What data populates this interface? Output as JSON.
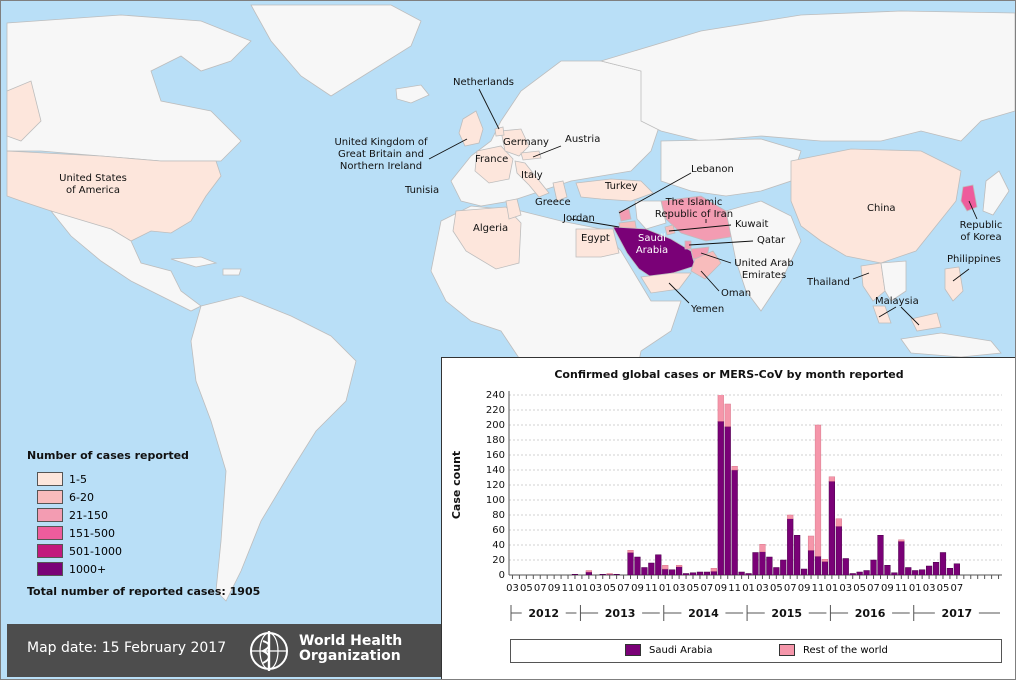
{
  "map": {
    "labels": {
      "netherlands": "Netherlands",
      "uk": "United Kingdom of Great Britain and Northern Ireland",
      "germany": "Germany",
      "austria": "Austria",
      "france": "France",
      "usa": "United States of America",
      "tunisia": "Tunisia",
      "italy": "Italy",
      "turkey": "Turkey",
      "lebanon": "Lebanon",
      "greece": "Greece",
      "iran": "The Islamic Republic of Iran",
      "jordan": "Jordan",
      "kuwait": "Kuwait",
      "algeria": "Algeria",
      "egypt": "Egypt",
      "saudi": "Saudi Arabia",
      "qatar": "Qatar",
      "uae": "United Arab Emirates",
      "oman": "Oman",
      "yemen": "Yemen",
      "china": "China",
      "korea": "Republic of Korea",
      "philippines": "Philippines",
      "thailand": "Thailand",
      "malaysia": "Malaysia"
    },
    "colors": {
      "ocean": "#b9dff7",
      "land": "#f7f7f7",
      "border": "#bdbdbd",
      "c1_5": "#fde6dc",
      "c6_20": "#f8bcbc",
      "c21_150": "#f39cb2",
      "c151_500": "#ee5c9c",
      "c501_1000": "#c2197d",
      "c1000": "#7a0177"
    }
  },
  "legend": {
    "title": "Number of cases reported",
    "items": [
      {
        "label": "1-5",
        "color": "#fde6dc"
      },
      {
        "label": "6-20",
        "color": "#f8bcbc"
      },
      {
        "label": "21-150",
        "color": "#f39cb2"
      },
      {
        "label": "151-500",
        "color": "#ee5c9c"
      },
      {
        "label": "501-1000",
        "color": "#c2197d"
      },
      {
        "label": "1000+",
        "color": "#7a0177"
      }
    ],
    "total": "Total number of reported cases: 1905"
  },
  "footer": {
    "map_date": "Map date: 15 February 2017",
    "org_line1": "World Health",
    "org_line2": "Organization"
  },
  "chart_data": {
    "type": "bar",
    "stacked": true,
    "title": "Confirmed global cases or MERS-CoV by month reported",
    "ylabel": "Case count",
    "ylim": [
      0,
      240
    ],
    "yticks": [
      0,
      20,
      40,
      60,
      80,
      100,
      120,
      140,
      160,
      180,
      200,
      220,
      240
    ],
    "grid": true,
    "legend_position": "bottom",
    "x_start": "2012-03",
    "month_labels": [
      "03",
      "05",
      "07",
      "09",
      "11",
      "01",
      "03",
      "05",
      "07",
      "09",
      "11",
      "01",
      "03",
      "05",
      "07",
      "09",
      "11",
      "01",
      "03",
      "05",
      "07",
      "09",
      "11",
      "01",
      "03",
      "05",
      "07",
      "09",
      "11",
      "01",
      "03",
      "05",
      "07"
    ],
    "years": [
      "2012",
      "2013",
      "2014",
      "2015",
      "2016",
      "2017"
    ],
    "series": [
      {
        "name": "Saudi Arabia",
        "color": "#7a0177",
        "values": [
          0,
          0,
          0,
          0,
          0,
          0,
          0,
          0,
          0,
          1,
          0,
          4,
          0,
          1,
          1,
          1,
          0,
          30,
          24,
          10,
          16,
          27,
          8,
          7,
          11,
          2,
          3,
          4,
          4,
          5,
          205,
          198,
          140,
          4,
          2,
          30,
          31,
          24,
          10,
          20,
          75,
          53,
          8,
          33,
          25,
          18,
          125,
          65,
          22,
          2,
          4,
          6,
          20,
          53,
          13,
          3,
          45,
          10,
          6,
          7,
          12,
          17,
          30,
          9,
          15,
          0,
          0,
          0,
          0,
          0,
          0
        ]
      },
      {
        "name": "Rest of the world",
        "color": "#f596aa",
        "values": [
          0,
          0,
          0,
          0,
          0,
          0,
          0,
          0,
          0,
          0,
          0,
          2,
          0,
          0,
          1,
          0,
          0,
          3,
          0,
          0,
          0,
          0,
          5,
          0,
          2,
          0,
          0,
          0,
          0,
          4,
          47,
          30,
          5,
          0,
          0,
          0,
          10,
          0,
          0,
          0,
          5,
          0,
          0,
          19,
          175,
          3,
          6,
          10,
          0,
          0,
          0,
          0,
          0,
          0,
          0,
          0,
          2,
          0,
          0,
          0,
          0,
          0,
          0,
          0,
          0,
          0,
          0,
          0,
          0,
          0,
          0
        ]
      }
    ]
  }
}
